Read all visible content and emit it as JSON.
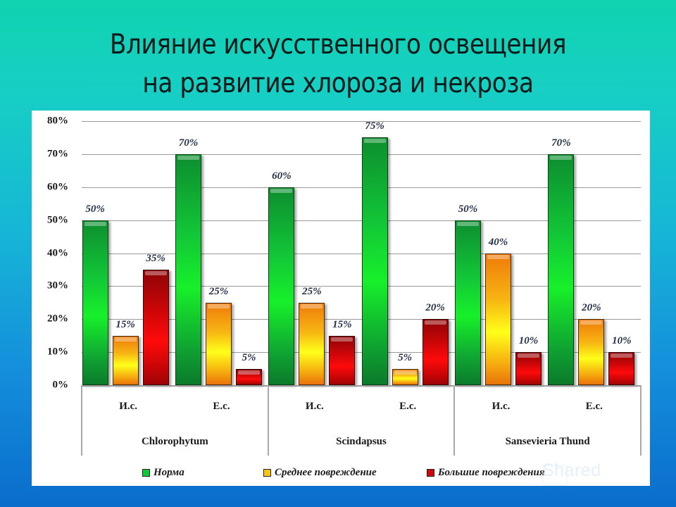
{
  "slide": {
    "title_line1": "Влияние искусственного освещения",
    "title_line2": "на развитие хлороза и некроза",
    "watermark": "Shared"
  },
  "colors": {
    "norm": "#12c737",
    "medium": "#f7c512",
    "large": "#d0060a",
    "background_top": "#0fd3b0",
    "background_bottom": "#0a6dcc"
  },
  "chart_data": {
    "type": "bar",
    "title": "Влияние искусственного освещения на развитие хлороза и некроза",
    "xlabel": "",
    "ylabel": "",
    "ylim": [
      0,
      80
    ],
    "yticks": [
      "0%",
      "10%",
      "20%",
      "30%",
      "40%",
      "50%",
      "60%",
      "70%",
      "80%"
    ],
    "grid": true,
    "legend_position": "bottom",
    "groups": [
      {
        "name": "Chlorophytum",
        "subcategories": [
          "И.с.",
          "Е.с."
        ]
      },
      {
        "name": "Scindapsus",
        "subcategories": [
          "И.с.",
          "Е.с."
        ]
      },
      {
        "name": "Sansevieria Thund",
        "subcategories": [
          "И.с.",
          "Е.с."
        ]
      }
    ],
    "categories": [
      "Chlorophytum И.с.",
      "Chlorophytum Е.с.",
      "Scindapsus И.с.",
      "Scindapsus Е.с.",
      "Sansevieria Thund И.с.",
      "Sansevieria Thund Е.с."
    ],
    "series": [
      {
        "name": "Норма",
        "color": "#12c737",
        "values": [
          50,
          70,
          60,
          75,
          50,
          70
        ]
      },
      {
        "name": "Среднее повреждение",
        "color": "#f7c512",
        "values": [
          15,
          25,
          25,
          5,
          40,
          20
        ]
      },
      {
        "name": "Большие повреждения",
        "color": "#d0060a",
        "values": [
          35,
          5,
          15,
          20,
          10,
          10
        ]
      }
    ],
    "value_labels": [
      [
        "50%",
        "70%",
        "60%",
        "75%",
        "50%",
        "70%"
      ],
      [
        "15%",
        "25%",
        "25%",
        "5%",
        "40%",
        "20%"
      ],
      [
        "35%",
        "5%",
        "15%",
        "20%",
        "10%",
        "10%"
      ]
    ]
  }
}
